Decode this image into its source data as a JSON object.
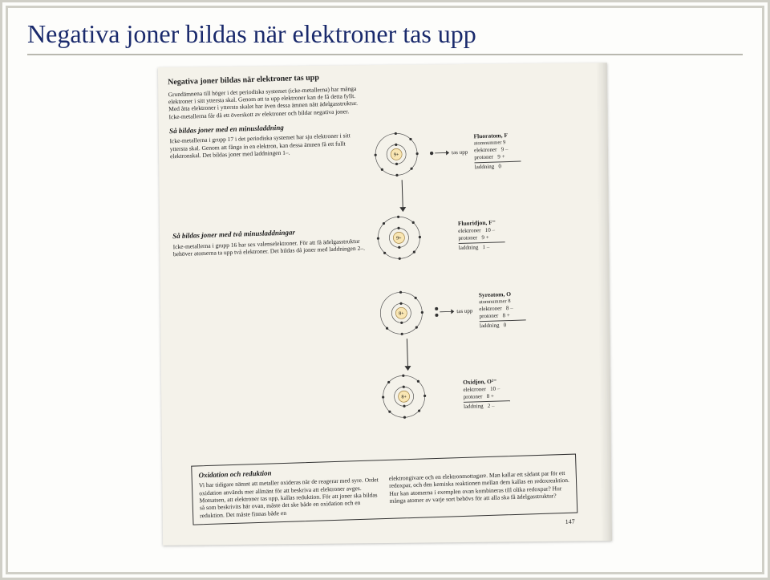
{
  "slide": {
    "title": "Negativa joner bildas när elektroner tas upp",
    "background": "#fdfdfb",
    "title_color": "#1a2a6c",
    "rule_color": "#b9b8af"
  },
  "scan": {
    "background": "#f4f2ea",
    "page_number": "147",
    "header": {
      "title": "Negativa joner bildas när elektroner tas upp",
      "body": "Grundämnena till höger i det periodiska systemet (icke-metallerna) har många elektroner i sitt yttersta skal. Genom att ta upp elektroner kan de få detta fyllt. Med åtta elektroner i yttersta skalet har även dessa ämnen nått ädelgasstruktur. Icke-metallerna får då ett överskott av elektroner och bildar negativa joner."
    },
    "sec1": {
      "title": "Så bildas joner med en minusladdning",
      "body": "Icke-metallerna i grupp 17 i det periodiska systemet har sju elektroner i sitt yttersta skal. Genom att fånga in en elektron, kan dessa ämnen få ett fullt elektronskal. Det bildas joner med laddningen 1–."
    },
    "sec2": {
      "title": "Så bildas joner med två minusladdningar",
      "body": "Icke-metallerna i grupp 16 har sex valenselektroner. För att få ädelgasstruktur behöver atomerna ta upp två elektroner. Det bildas då joner med laddningen 2–."
    },
    "box": {
      "title": "Oxidation och reduktion",
      "left": "Vi har tidigare nämnt att metaller oxideras när de reagerar med syre. Ordet oxidation används mer allmänt för att beskriva att elektroner avges. Motsatsen, att elektroner tas upp, kallas reduktion.\nFör att joner ska bildas så som beskrivits här ovan, måste det ske både en oxidation och en reduktion. Det måste finnas både en",
      "right": "elektrongivare och en elektronmottagare. Man kallar ett sådant par för ett redoxpar, och den kemiska reaktionen mellan dem kallas en redoxreaktion.\nHur kan atomerna i exemplen ovan kombineras till olika redoxpar? Hur många atomer av varje sort behövs för att alla ska få ädelgasstruktur?"
    },
    "tas_upp": "tas upp",
    "atoms": {
      "fluor_atom": {
        "core": "9+",
        "shell1": 2,
        "shell2": 7,
        "label": "Fluoratom, F",
        "sub": "atomnummer 9",
        "rows": [
          [
            "elektroner",
            "9 –"
          ],
          [
            "protoner",
            "9 +"
          ],
          [
            "laddning",
            "0"
          ]
        ]
      },
      "fluoride": {
        "core": "9+",
        "shell1": 2,
        "shell2": 8,
        "label": "Fluoridjon, F⁻",
        "sub": "",
        "rows": [
          [
            "elektroner",
            "10 –"
          ],
          [
            "protoner",
            "9 +"
          ],
          [
            "laddning",
            "1 –"
          ]
        ]
      },
      "oxygen_atom": {
        "core": "8+",
        "shell1": 2,
        "shell2": 6,
        "label": "Syreatom, O",
        "sub": "atomnummer 8",
        "rows": [
          [
            "elektroner",
            "8 –"
          ],
          [
            "protoner",
            "8 +"
          ],
          [
            "laddning",
            "0"
          ]
        ]
      },
      "oxide": {
        "core": "8+",
        "shell1": 2,
        "shell2": 8,
        "label": "Oxidjon, O²⁻",
        "sub": "",
        "rows": [
          [
            "elektroner",
            "10 –"
          ],
          [
            "protoner",
            "8 +"
          ],
          [
            "laddning",
            "2 –"
          ]
        ]
      }
    },
    "diagram_style": {
      "shell_stroke": "#555555",
      "electron_fill": "#333333",
      "nucleus_fill": "#f9e6b3",
      "nucleus_stroke": "#a08040"
    }
  }
}
